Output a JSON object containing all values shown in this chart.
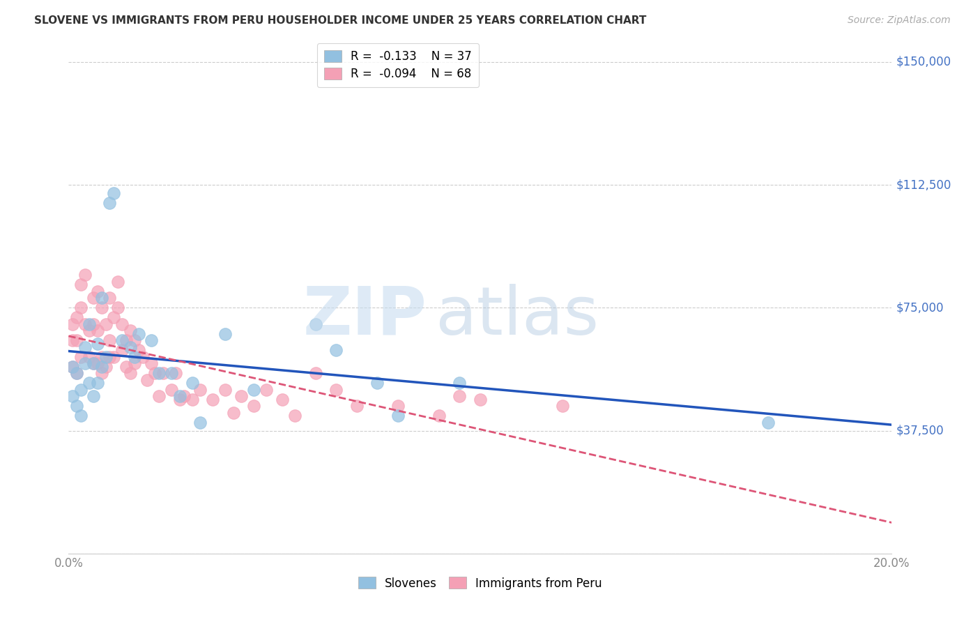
{
  "title": "SLOVENE VS IMMIGRANTS FROM PERU HOUSEHOLDER INCOME UNDER 25 YEARS CORRELATION CHART",
  "source": "Source: ZipAtlas.com",
  "ylabel_color": "#4472c4",
  "xmin": 0.0,
  "xmax": 0.2,
  "ymin": 0,
  "ymax": 150000,
  "slovene_R": -0.133,
  "slovene_N": 37,
  "peru_R": -0.094,
  "peru_N": 68,
  "slovene_color": "#92c0e0",
  "peru_color": "#f4a0b5",
  "slovene_line_color": "#2255bb",
  "peru_line_color": "#dd5577",
  "slovene_x": [
    0.001,
    0.001,
    0.002,
    0.002,
    0.003,
    0.003,
    0.004,
    0.004,
    0.005,
    0.005,
    0.006,
    0.006,
    0.007,
    0.007,
    0.008,
    0.008,
    0.009,
    0.01,
    0.011,
    0.013,
    0.015,
    0.016,
    0.017,
    0.02,
    0.022,
    0.025,
    0.027,
    0.03,
    0.032,
    0.038,
    0.045,
    0.06,
    0.065,
    0.075,
    0.08,
    0.095,
    0.17
  ],
  "slovene_y": [
    57000,
    48000,
    55000,
    45000,
    50000,
    42000,
    63000,
    58000,
    70000,
    52000,
    58000,
    48000,
    64000,
    52000,
    78000,
    57000,
    60000,
    107000,
    110000,
    65000,
    63000,
    60000,
    67000,
    65000,
    55000,
    55000,
    48000,
    52000,
    40000,
    67000,
    50000,
    70000,
    62000,
    52000,
    42000,
    52000,
    40000
  ],
  "peru_x": [
    0.001,
    0.001,
    0.001,
    0.002,
    0.002,
    0.002,
    0.003,
    0.003,
    0.003,
    0.004,
    0.004,
    0.005,
    0.005,
    0.006,
    0.006,
    0.006,
    0.007,
    0.007,
    0.007,
    0.008,
    0.008,
    0.008,
    0.009,
    0.009,
    0.01,
    0.01,
    0.01,
    0.011,
    0.011,
    0.012,
    0.012,
    0.013,
    0.013,
    0.014,
    0.014,
    0.015,
    0.015,
    0.016,
    0.016,
    0.017,
    0.018,
    0.019,
    0.02,
    0.021,
    0.022,
    0.023,
    0.025,
    0.026,
    0.027,
    0.028,
    0.03,
    0.032,
    0.035,
    0.038,
    0.04,
    0.042,
    0.045,
    0.048,
    0.052,
    0.055,
    0.06,
    0.065,
    0.07,
    0.08,
    0.09,
    0.095,
    0.1,
    0.12
  ],
  "peru_y": [
    70000,
    65000,
    57000,
    72000,
    65000,
    55000,
    82000,
    75000,
    60000,
    85000,
    70000,
    68000,
    60000,
    78000,
    70000,
    58000,
    80000,
    68000,
    58000,
    75000,
    60000,
    55000,
    70000,
    57000,
    78000,
    65000,
    60000,
    72000,
    60000,
    83000,
    75000,
    70000,
    62000,
    65000,
    57000,
    68000,
    55000,
    65000,
    58000,
    62000,
    60000,
    53000,
    58000,
    55000,
    48000,
    55000,
    50000,
    55000,
    47000,
    48000,
    47000,
    50000,
    47000,
    50000,
    43000,
    48000,
    45000,
    50000,
    47000,
    42000,
    55000,
    50000,
    45000,
    45000,
    42000,
    48000,
    47000,
    45000
  ]
}
